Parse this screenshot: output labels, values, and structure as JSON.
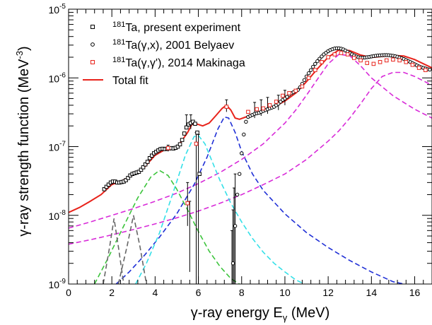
{
  "chart_data": {
    "type": "scatter",
    "xlabel_main": "γ-ray energy E",
    "xlabel_sub": "γ",
    "xlabel_unit": " (MeV)",
    "ylabel_main": "γ-ray strength function (MeV",
    "ylabel_sup": "-3",
    "ylabel_end": ")",
    "xlim": [
      0,
      16.8
    ],
    "ylim": [
      1e-09,
      1e-05
    ],
    "yscale": "log",
    "x_ticks": [
      "0",
      "2",
      "4",
      "6",
      "8",
      "10",
      "12",
      "14",
      "16"
    ],
    "y_tick_mantissa": "10",
    "y_tick_exponents": [
      "-9",
      "-8",
      "-7",
      "-6",
      "-5"
    ],
    "legend_position": "top-left",
    "legend": [
      {
        "sup": "181",
        "text": "Ta, present experiment",
        "marker": "square",
        "color": "#000000"
      },
      {
        "sup": "181",
        "text": "Ta(γ,x), 2001 Belyaev",
        "marker": "circle",
        "color": "#000000"
      },
      {
        "sup": "181",
        "text": "Ta(γ,γ'), 2014 Makinaga",
        "marker": "square",
        "color": "#e8231b"
      },
      {
        "sup": "",
        "text": "Total fit",
        "marker": "line",
        "color": "#e8231b"
      }
    ],
    "series": [
      {
        "marker": "square",
        "color": "#000000",
        "x": [
          1.65,
          1.75,
          1.85,
          1.95,
          2.05,
          2.15,
          2.25,
          2.35,
          2.45,
          2.55,
          2.65,
          2.75,
          2.85,
          2.95,
          3.05,
          3.15,
          3.25,
          3.35,
          3.45,
          3.55,
          3.65,
          3.75,
          3.85,
          3.95,
          4.05,
          4.15,
          4.25,
          4.35,
          4.45,
          4.55,
          4.65,
          4.75,
          4.85,
          4.95,
          5.05,
          5.15,
          5.25,
          5.35,
          5.45,
          5.55,
          5.65,
          5.75,
          5.85,
          5.95,
          6.05
        ],
        "y": [
          2.4e-08,
          2.6e-08,
          2.8e-08,
          3e-08,
          3.1e-08,
          3.1e-08,
          3e-08,
          3e-08,
          3.05e-08,
          3.1e-08,
          3.25e-08,
          3.5e-08,
          3.8e-08,
          4e-08,
          4.1e-08,
          4.2e-08,
          4.3e-08,
          4.6e-08,
          5e-08,
          5.5e-08,
          6e-08,
          6.8e-08,
          7.4e-08,
          8e-08,
          8.4e-08,
          8.8e-08,
          9.2e-08,
          9.3e-08,
          9.2e-08,
          9.3e-08,
          9.4e-08,
          9.5e-08,
          9.4e-08,
          9.6e-08,
          1e-07,
          1.08e-07,
          1.25e-07,
          1.55e-07,
          1.9e-07,
          2.1e-07,
          2.2e-07,
          2.3e-07,
          2.15e-07,
          1.6e-07,
          4e-08
        ]
      },
      {
        "marker": "circle",
        "color": "#000000",
        "x": [
          7.6,
          7.7,
          7.8,
          7.9,
          8.0,
          8.1,
          8.2,
          8.3,
          8.4,
          8.5,
          8.6,
          8.7,
          8.8,
          8.9,
          9.0,
          9.1,
          9.2,
          9.3,
          9.4,
          9.5,
          9.6,
          9.7,
          9.8,
          9.9,
          10.0,
          10.1,
          10.2,
          10.3,
          10.4,
          10.5,
          10.6,
          10.7,
          10.8,
          10.9,
          11.0,
          11.1,
          11.2,
          11.3,
          11.4,
          11.5,
          11.6,
          11.7,
          11.8,
          11.9,
          12.0,
          12.1,
          12.2,
          12.3,
          12.4,
          12.5,
          12.6,
          12.7,
          12.8,
          12.9,
          13.0,
          13.1,
          13.2,
          13.3,
          13.4,
          13.5,
          13.6,
          13.7,
          13.8,
          13.9,
          14.0,
          14.1,
          14.2,
          14.3,
          14.4,
          14.5,
          14.6,
          14.7,
          14.8,
          14.9,
          15.0,
          15.1,
          15.2,
          15.3,
          15.4,
          15.5,
          15.6,
          15.7,
          15.8,
          15.9,
          16.0,
          16.1,
          16.2,
          16.3,
          16.4,
          16.5,
          16.6,
          16.7
        ],
        "y": [
          2e-09,
          7e-09,
          2e-08,
          4e-08,
          8e-08,
          1.5e-07,
          2.3e-07,
          2.7e-07,
          2.8e-07,
          2.9e-07,
          3e-07,
          3.05e-07,
          3.1e-07,
          3.2e-07,
          3.3e-07,
          3.4e-07,
          3.5e-07,
          3.6e-07,
          3.7e-07,
          3.8e-07,
          4e-07,
          4.2e-07,
          4.5e-07,
          4.8e-07,
          5e-07,
          5.3e-07,
          5.7e-07,
          6e-07,
          6.2e-07,
          6.4e-07,
          6.7e-07,
          7.3e-07,
          8.2e-07,
          9.3e-07,
          1.05e-06,
          1.17e-06,
          1.3e-06,
          1.45e-06,
          1.6e-06,
          1.75e-06,
          1.9e-06,
          2.05e-06,
          2.2e-06,
          2.32e-06,
          2.45e-06,
          2.55e-06,
          2.62e-06,
          2.68e-06,
          2.7e-06,
          2.7e-06,
          2.66e-06,
          2.6e-06,
          2.5e-06,
          2.4e-06,
          2.3e-06,
          2.2e-06,
          2.12e-06,
          2.05e-06,
          2e-06,
          1.98e-06,
          1.97e-06,
          1.98e-06,
          2e-06,
          2.02e-06,
          2.05e-06,
          2.08e-06,
          2.1e-06,
          2.12e-06,
          2.13e-06,
          2.14e-06,
          2.15e-06,
          2.15e-06,
          2.14e-06,
          2.12e-06,
          2.1e-06,
          2.07e-06,
          2.03e-06,
          1.98e-06,
          1.93e-06,
          1.88e-06,
          1.82e-06,
          1.76e-06,
          1.7e-06,
          1.64e-06,
          1.58e-06,
          1.52e-06,
          1.47e-06,
          1.43e-06,
          1.4e-06,
          1.37e-06,
          1.34e-06,
          1.32e-06
        ]
      },
      {
        "marker": "square",
        "color": "#e8231b",
        "x": [
          4.6,
          5.5,
          5.9,
          7.3,
          8.3,
          8.7,
          9.0,
          9.3,
          9.6,
          9.9,
          10.2,
          10.5,
          10.8,
          11.1,
          11.4,
          11.7,
          12.0,
          12.3,
          12.6,
          12.9,
          13.2,
          13.5,
          13.8,
          14.1,
          14.4,
          14.7,
          15.0,
          15.3,
          15.6,
          15.9,
          16.2,
          16.5
        ],
        "y": [
          9.5e-08,
          1.5e-08,
          1.1e-07,
          3.8e-07,
          3.2e-07,
          3.5e-07,
          3.6e-07,
          4e-07,
          4.5e-07,
          5.5e-07,
          6e-07,
          6.5e-07,
          7.5e-07,
          1e-06,
          1.3e-06,
          1.7e-06,
          2e-06,
          2.2e-06,
          2.3e-06,
          2.2e-06,
          1.95e-06,
          1.8e-06,
          1.65e-06,
          1.6e-06,
          1.7e-06,
          1.8e-06,
          1.85e-06,
          1.8e-06,
          1.7e-06,
          1.55e-06,
          1.4e-06,
          1.3e-06
        ]
      }
    ],
    "curves": [
      {
        "name": "Total fit",
        "color": "#e8231b",
        "dashed": false,
        "x": [
          0,
          0.5,
          1.0,
          1.5,
          2.0,
          2.5,
          3.0,
          3.5,
          4.0,
          4.5,
          5.0,
          5.5,
          5.7,
          5.9,
          6.2,
          6.5,
          6.8,
          7.1,
          7.3,
          7.5,
          7.7,
          7.9,
          8.2,
          8.5,
          9.0,
          9.5,
          10.0,
          10.5,
          11.0,
          11.5,
          12.0,
          12.5,
          13.0,
          13.5,
          14.0,
          14.5,
          15.0,
          15.5,
          16.0,
          16.5,
          16.8
        ],
        "y": [
          1.1e-08,
          1.3e-08,
          1.6e-08,
          2e-08,
          2.8e-08,
          3.2e-08,
          3.9e-08,
          5e-08,
          7.5e-08,
          9.2e-08,
          9.6e-08,
          1.6e-07,
          2.1e-07,
          2.15e-07,
          2e-07,
          2.2e-07,
          2.8e-07,
          3.6e-07,
          4e-07,
          3.4e-07,
          2.6e-07,
          2.5e-07,
          2.7e-07,
          2.9e-07,
          3.3e-07,
          3.8e-07,
          4.6e-07,
          6e-07,
          8.8e-07,
          1.35e-06,
          2e-06,
          2.55e-06,
          2.5e-06,
          2.15e-06,
          1.98e-06,
          2.05e-06,
          2.12e-06,
          2.08e-06,
          1.85e-06,
          1.55e-06,
          1.4e-06
        ]
      },
      {
        "color": "#d82ad8",
        "dashed": true,
        "x": [
          0,
          1,
          2,
          3,
          4,
          5,
          6,
          7,
          8,
          9,
          10,
          10.5,
          11,
          11.5,
          12,
          12.5,
          13,
          13.5,
          14,
          15,
          16,
          16.8
        ],
        "y": [
          6.5e-09,
          8e-09,
          1e-08,
          1.25e-08,
          1.6e-08,
          2.1e-08,
          2.9e-08,
          4.2e-08,
          6.5e-08,
          1.1e-07,
          2.2e-07,
          3.4e-07,
          5.6e-07,
          9.5e-07,
          1.6e-06,
          2.2e-06,
          2.1e-06,
          1.5e-06,
          1e-06,
          5.5e-07,
          3.5e-07,
          2.6e-07
        ]
      },
      {
        "color": "#d82ad8",
        "dashed": true,
        "x": [
          0,
          1,
          2,
          3,
          4,
          5,
          6,
          7,
          8,
          9,
          10,
          11,
          12,
          12.5,
          13,
          13.5,
          14,
          14.5,
          15,
          15.5,
          16,
          16.8
        ],
        "y": [
          3.8e-09,
          4.4e-09,
          5.2e-09,
          6.2e-09,
          7.5e-09,
          9.2e-09,
          1.15e-08,
          1.5e-08,
          2e-08,
          2.8e-08,
          4e-08,
          6.5e-08,
          1.2e-07,
          1.7e-07,
          2.6e-07,
          4.2e-07,
          7e-07,
          1.05e-06,
          1.2e-06,
          1.2e-06,
          1.05e-06,
          7.8e-07
        ]
      },
      {
        "color": "#1f2fd6",
        "dashed": true,
        "x": [
          2.2,
          2.8,
          3.5,
          4.2,
          5.0,
          5.8,
          6.4,
          6.9,
          7.2,
          7.4,
          7.7,
          8.0,
          8.5,
          9.0,
          10.0,
          11.0,
          12.0,
          13.0,
          14.0,
          15.0,
          15.5
        ],
        "y": [
          1e-09,
          1.5e-09,
          2.6e-09,
          4.8e-09,
          1.05e-08,
          2.8e-08,
          7e-08,
          1.8e-07,
          2.7e-07,
          2.6e-07,
          1.6e-07,
          8.5e-08,
          4e-08,
          2.3e-08,
          1.05e-08,
          5.6e-09,
          3.4e-09,
          2.2e-09,
          1.5e-09,
          1.08e-09,
          1e-09
        ]
      },
      {
        "color": "#33e0e8",
        "dashed": true,
        "x": [
          3.1,
          3.6,
          4.2,
          4.8,
          5.4,
          5.8,
          6.0,
          6.3,
          6.6,
          7.0,
          7.5,
          8.0,
          8.5,
          9.0,
          9.5,
          10.0,
          10.5,
          10.9
        ],
        "y": [
          1e-09,
          2e-09,
          5.5e-09,
          2e-08,
          7.5e-08,
          1.4e-07,
          1.45e-07,
          1.1e-07,
          6.5e-08,
          3.2e-08,
          1.5e-08,
          8e-09,
          4.6e-09,
          2.9e-09,
          2e-09,
          1.5e-09,
          1.15e-09,
          1e-09
        ]
      },
      {
        "color": "#3cc43c",
        "dashed": true,
        "x": [
          1.2,
          1.8,
          2.5,
          3.2,
          3.8,
          4.2,
          4.6,
          5.0,
          5.5,
          6.0,
          6.5,
          7.0,
          7.5,
          7.9
        ],
        "y": [
          1e-09,
          2.3e-09,
          6.5e-09,
          1.8e-08,
          3.6e-08,
          4.5e-08,
          3.8e-08,
          2.4e-08,
          1.2e-08,
          5.8e-09,
          3e-09,
          1.8e-09,
          1.2e-09,
          1e-09
        ]
      },
      {
        "color": "#666666",
        "dashed": true,
        "x": [
          1.6,
          1.9,
          2.1,
          2.3,
          2.55
        ],
        "y": [
          1e-09,
          3.5e-09,
          9e-09,
          3.5e-09,
          1e-09
        ]
      },
      {
        "color": "#666666",
        "dashed": true,
        "x": [
          2.3,
          2.7,
          3.0,
          3.3,
          3.6
        ],
        "y": [
          1e-09,
          3.5e-09,
          1e-08,
          3.5e-09,
          1e-09
        ]
      }
    ],
    "error_bars": [
      {
        "x": 5.5,
        "ylow": 7e-09,
        "yhigh": 3e-08,
        "color": "#000000"
      },
      {
        "x": 5.6,
        "ylow": 1.5e-09,
        "yhigh": 1.6e-08,
        "color": "#000000"
      },
      {
        "x": 5.9,
        "ylow": 1e-09,
        "yhigh": 1.6e-07,
        "color": "#000000"
      },
      {
        "x": 6.0,
        "ylow": 1e-09,
        "yhigh": 1.5e-07,
        "color": "#000000"
      },
      {
        "x": 5.45,
        "ylow": 1.8e-07,
        "yhigh": 2.9e-07,
        "color": "#000000"
      },
      {
        "x": 5.65,
        "ylow": 1.8e-07,
        "yhigh": 2.9e-07,
        "color": "#000000"
      },
      {
        "x": 7.3,
        "ylow": 3.2e-07,
        "yhigh": 4.8e-07,
        "color": "#000000"
      },
      {
        "x": 7.55,
        "ylow": 1e-09,
        "yhigh": 6e-09,
        "color": "#000000"
      },
      {
        "x": 7.6,
        "ylow": 1e-09,
        "yhigh": 1.2e-08,
        "color": "#000000"
      },
      {
        "x": 7.65,
        "ylow": 1e-09,
        "yhigh": 2.5e-08,
        "color": "#000000"
      },
      {
        "x": 7.7,
        "ylow": 1e-09,
        "yhigh": 4e-08,
        "color": "#000000"
      },
      {
        "x": 8.6,
        "ylow": 2.6e-07,
        "yhigh": 4.4e-07,
        "color": "#000000"
      },
      {
        "x": 8.9,
        "ylow": 2.8e-07,
        "yhigh": 4.8e-07,
        "color": "#000000"
      },
      {
        "x": 9.2,
        "ylow": 3e-07,
        "yhigh": 5.2e-07,
        "color": "#000000"
      },
      {
        "x": 9.7,
        "ylow": 3.4e-07,
        "yhigh": 5.6e-07,
        "color": "#000000"
      },
      {
        "x": 10.0,
        "ylow": 4e-07,
        "yhigh": 6.6e-07,
        "color": "#000000"
      },
      {
        "x": 4.6,
        "ylow": 8.5e-08,
        "yhigh": 1.05e-07,
        "color": "#000000"
      }
    ]
  }
}
